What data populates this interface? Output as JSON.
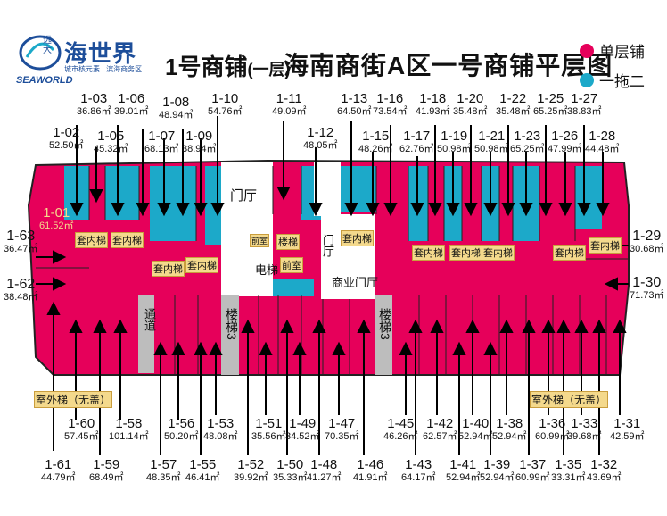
{
  "logo": {
    "small": "远大",
    "name": "海世界",
    "subtitle": "城市核元素 · 滨海商务区",
    "en": "SEAWORLD"
  },
  "title": {
    "building": "1号商铺",
    "floor": "(一层)",
    "main": "海南商街A区一号商铺平层图"
  },
  "legend": [
    {
      "label": "单层铺",
      "color": "#e6005a"
    },
    {
      "label": "一拖二",
      "color": "#1ca9c9"
    }
  ],
  "colors": {
    "single": "#e6005a",
    "double": "#1ca9c9",
    "stair": "#bdbdbd",
    "lift": "#f4d98c"
  },
  "top_units": [
    {
      "id": "1-03",
      "area": "36.86㎡"
    },
    {
      "id": "1-06",
      "area": "39.01㎡"
    },
    {
      "id": "1-02",
      "area": "52.50㎡"
    },
    {
      "id": "1-05",
      "area": "45.32㎡"
    },
    {
      "id": "1-08",
      "area": "48.94㎡"
    },
    {
      "id": "1-10",
      "area": "54.76㎡"
    },
    {
      "id": "1-07",
      "area": "68.13㎡"
    },
    {
      "id": "1-09",
      "area": "38.94㎡"
    },
    {
      "id": "1-11",
      "area": "49.09㎡"
    },
    {
      "id": "1-12",
      "area": "48.05㎡"
    },
    {
      "id": "1-13",
      "area": "64.50㎡"
    },
    {
      "id": "1-16",
      "area": "73.54㎡"
    },
    {
      "id": "1-15",
      "area": "48.26㎡"
    },
    {
      "id": "1-18",
      "area": "41.93㎡"
    },
    {
      "id": "1-20",
      "area": "35.48㎡"
    },
    {
      "id": "1-17",
      "area": "62.76㎡"
    },
    {
      "id": "1-19",
      "area": "50.98㎡"
    },
    {
      "id": "1-22",
      "area": "35.48㎡"
    },
    {
      "id": "1-25",
      "area": "65.25㎡"
    },
    {
      "id": "1-21",
      "area": "50.98㎡"
    },
    {
      "id": "1-23",
      "area": "65.25㎡"
    },
    {
      "id": "1-27",
      "area": "38.83㎡"
    },
    {
      "id": "1-26",
      "area": "47.99㎡"
    },
    {
      "id": "1-28",
      "area": "44.48㎡"
    }
  ],
  "side_units": [
    {
      "id": "1-01",
      "area": "61.52㎡"
    },
    {
      "id": "1-63",
      "area": "36.47㎡"
    },
    {
      "id": "1-62",
      "area": "38.48㎡"
    },
    {
      "id": "1-29",
      "area": "30.68㎡"
    },
    {
      "id": "1-30",
      "area": "71.73㎡"
    }
  ],
  "bottom_units": [
    {
      "id": "1-60",
      "area": "57.45㎡"
    },
    {
      "id": "1-61",
      "area": "44.79㎡"
    },
    {
      "id": "1-58",
      "area": "101.14㎡"
    },
    {
      "id": "1-59",
      "area": "68.49㎡"
    },
    {
      "id": "1-56",
      "area": "50.20㎡"
    },
    {
      "id": "1-57",
      "area": "48.35㎡"
    },
    {
      "id": "1-53",
      "area": "48.08㎡"
    },
    {
      "id": "1-55",
      "area": "46.41㎡"
    },
    {
      "id": "1-51",
      "area": "35.56㎡"
    },
    {
      "id": "1-52",
      "area": "39.92㎡"
    },
    {
      "id": "1-49",
      "area": "34.52㎡"
    },
    {
      "id": "1-50",
      "area": "35.33㎡"
    },
    {
      "id": "1-47",
      "area": "70.35㎡"
    },
    {
      "id": "1-48",
      "area": "41.27㎡"
    },
    {
      "id": "1-46",
      "area": "41.91㎡"
    },
    {
      "id": "1-45",
      "area": "46.26㎡"
    },
    {
      "id": "1-43",
      "area": "64.17㎡"
    },
    {
      "id": "1-42",
      "area": "62.57㎡"
    },
    {
      "id": "1-41",
      "area": "52.94㎡"
    },
    {
      "id": "1-40",
      "area": "52.94㎡"
    },
    {
      "id": "1-39",
      "area": "52.94㎡"
    },
    {
      "id": "1-38",
      "area": "52.94㎡"
    },
    {
      "id": "1-37",
      "area": "60.99㎡"
    },
    {
      "id": "1-36",
      "area": "60.99㎡"
    },
    {
      "id": "1-35",
      "area": "33.31㎡"
    },
    {
      "id": "1-33",
      "area": "39.68㎡"
    },
    {
      "id": "1-32",
      "area": "43.69㎡"
    },
    {
      "id": "1-31",
      "area": "42.59㎡"
    }
  ],
  "plan_labels": {
    "hall": "门厅",
    "hall2": "门厅",
    "stair": "楼梯",
    "front": "前室",
    "lift": "电梯",
    "front2": "前室",
    "inner_lift": "套内梯",
    "passage": "通道",
    "stairs3": "楼梯3",
    "commercial_hall": "商业门厅",
    "outdoor": "室外梯（无盖）"
  }
}
